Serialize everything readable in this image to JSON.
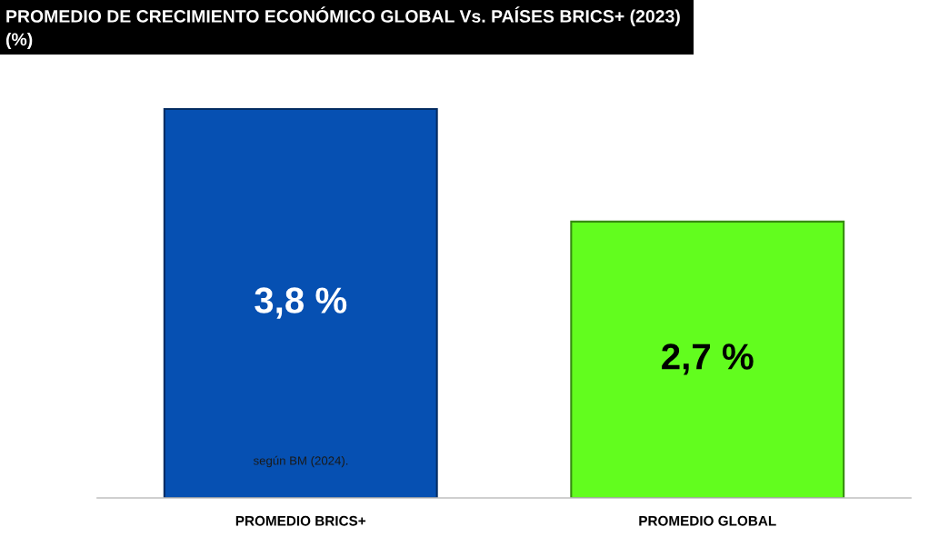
{
  "chart_data": {
    "type": "bar",
    "title": "PROMEDIO DE CRECIMIENTO ECONÓMICO GLOBAL Vs. PAÍSES BRICS+ (2023)",
    "subtitle": "(%)",
    "categories": [
      "PROMEDIO BRICS+",
      "PROMEDIO GLOBAL"
    ],
    "values": [
      3.8,
      2.7
    ],
    "colors": [
      "#0650b2",
      "#62fd1e"
    ],
    "value_labels": [
      "3,8 %",
      "2,7 %"
    ],
    "tick_labels": "x",
    "annotations": [
      "según BM (2024)."
    ]
  }
}
